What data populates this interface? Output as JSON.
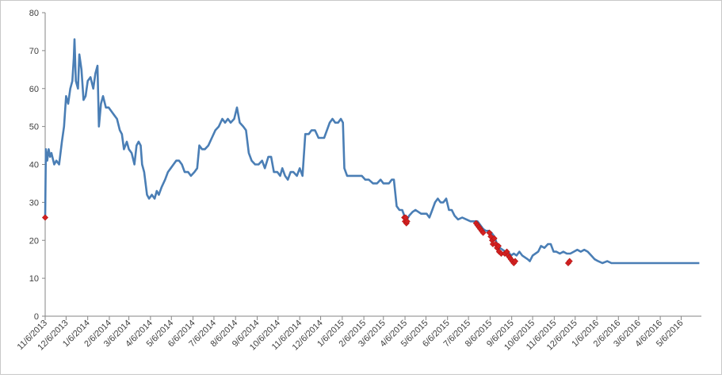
{
  "chart_data": {
    "type": "line",
    "title": "",
    "xlabel": "",
    "ylabel": "",
    "ylim": [
      0,
      80
    ],
    "yticks": [
      0,
      10,
      20,
      30,
      40,
      50,
      60,
      70,
      80
    ],
    "xlim": [
      "2013-11-06",
      "2016-06-04"
    ],
    "xticks": [
      "11/6/2013",
      "12/6/2013",
      "1/6/2014",
      "2/6/2014",
      "3/6/2014",
      "4/6/2014",
      "5/6/2014",
      "6/6/2014",
      "7/6/2014",
      "8/6/2014",
      "9/6/2014",
      "10/6/2014",
      "11/6/2014",
      "12/6/2014",
      "1/6/2015",
      "2/6/2015",
      "3/6/2015",
      "4/6/2015",
      "5/6/2015",
      "6/6/2015",
      "7/6/2015",
      "8/6/2015",
      "9/6/2015",
      "10/6/2015",
      "11/6/2015",
      "12/6/2015",
      "1/6/2016",
      "2/6/2016",
      "3/6/2016",
      "4/6/2016",
      "5/6/2016"
    ],
    "grid": false,
    "legend": "none",
    "colors": {
      "line": "#4a7eb5",
      "markers": "#d42020",
      "axis": "#868686"
    },
    "series": [
      {
        "type": "line",
        "points": [
          [
            "2013-11-06",
            26
          ],
          [
            "2013-11-07",
            44
          ],
          [
            "2013-11-09",
            41
          ],
          [
            "2013-11-11",
            44
          ],
          [
            "2013-11-13",
            42
          ],
          [
            "2013-11-15",
            43
          ],
          [
            "2013-11-19",
            40
          ],
          [
            "2013-11-22",
            41
          ],
          [
            "2013-11-26",
            40
          ],
          [
            "2013-11-30",
            46
          ],
          [
            "2013-12-03",
            50
          ],
          [
            "2013-12-06",
            58
          ],
          [
            "2013-12-09",
            56
          ],
          [
            "2013-12-12",
            60
          ],
          [
            "2013-12-15",
            62
          ],
          [
            "2013-12-17",
            68
          ],
          [
            "2013-12-18",
            73
          ],
          [
            "2013-12-20",
            62
          ],
          [
            "2013-12-23",
            60
          ],
          [
            "2013-12-25",
            69
          ],
          [
            "2013-12-28",
            65
          ],
          [
            "2013-12-31",
            57
          ],
          [
            "2014-01-03",
            58
          ],
          [
            "2014-01-06",
            62
          ],
          [
            "2014-01-10",
            63
          ],
          [
            "2014-01-14",
            60
          ],
          [
            "2014-01-17",
            64
          ],
          [
            "2014-01-20",
            66
          ],
          [
            "2014-01-22",
            50
          ],
          [
            "2014-01-25",
            56
          ],
          [
            "2014-01-28",
            58
          ],
          [
            "2014-02-01",
            55
          ],
          [
            "2014-02-05",
            55
          ],
          [
            "2014-02-09",
            54
          ],
          [
            "2014-02-13",
            53
          ],
          [
            "2014-02-17",
            52
          ],
          [
            "2014-02-21",
            49
          ],
          [
            "2014-02-24",
            48
          ],
          [
            "2014-02-27",
            44
          ],
          [
            "2014-03-03",
            46
          ],
          [
            "2014-03-06",
            44
          ],
          [
            "2014-03-10",
            43
          ],
          [
            "2014-03-14",
            40
          ],
          [
            "2014-03-17",
            45
          ],
          [
            "2014-03-20",
            46
          ],
          [
            "2014-03-23",
            45
          ],
          [
            "2014-03-25",
            40
          ],
          [
            "2014-03-28",
            38
          ],
          [
            "2014-04-01",
            32
          ],
          [
            "2014-04-04",
            31
          ],
          [
            "2014-04-08",
            32
          ],
          [
            "2014-04-12",
            31
          ],
          [
            "2014-04-15",
            33
          ],
          [
            "2014-04-18",
            32
          ],
          [
            "2014-04-22",
            34
          ],
          [
            "2014-04-27",
            36
          ],
          [
            "2014-05-01",
            38
          ],
          [
            "2014-05-05",
            39
          ],
          [
            "2014-05-09",
            40
          ],
          [
            "2014-05-13",
            41
          ],
          [
            "2014-05-17",
            41
          ],
          [
            "2014-05-21",
            40
          ],
          [
            "2014-05-25",
            38
          ],
          [
            "2014-05-30",
            38
          ],
          [
            "2014-06-03",
            37
          ],
          [
            "2014-06-08",
            38
          ],
          [
            "2014-06-12",
            39
          ],
          [
            "2014-06-15",
            45
          ],
          [
            "2014-06-19",
            44
          ],
          [
            "2014-06-23",
            44
          ],
          [
            "2014-06-28",
            45
          ],
          [
            "2014-07-03",
            47
          ],
          [
            "2014-07-08",
            49
          ],
          [
            "2014-07-13",
            50
          ],
          [
            "2014-07-18",
            52
          ],
          [
            "2014-07-22",
            51
          ],
          [
            "2014-07-26",
            52
          ],
          [
            "2014-07-30",
            51
          ],
          [
            "2014-08-04",
            52
          ],
          [
            "2014-08-08",
            55
          ],
          [
            "2014-08-12",
            51
          ],
          [
            "2014-08-17",
            50
          ],
          [
            "2014-08-21",
            49
          ],
          [
            "2014-08-25",
            43
          ],
          [
            "2014-08-29",
            41
          ],
          [
            "2014-09-03",
            40
          ],
          [
            "2014-09-08",
            40
          ],
          [
            "2014-09-13",
            41
          ],
          [
            "2014-09-17",
            39
          ],
          [
            "2014-09-22",
            42
          ],
          [
            "2014-09-26",
            42
          ],
          [
            "2014-09-30",
            38
          ],
          [
            "2014-10-05",
            38
          ],
          [
            "2014-10-09",
            37
          ],
          [
            "2014-10-12",
            39
          ],
          [
            "2014-10-16",
            37
          ],
          [
            "2014-10-20",
            36
          ],
          [
            "2014-10-24",
            38
          ],
          [
            "2014-10-28",
            38
          ],
          [
            "2014-11-02",
            37
          ],
          [
            "2014-11-06",
            39
          ],
          [
            "2014-11-10",
            37
          ],
          [
            "2014-11-14",
            48
          ],
          [
            "2014-11-19",
            48
          ],
          [
            "2014-11-23",
            49
          ],
          [
            "2014-11-28",
            49
          ],
          [
            "2014-12-03",
            47
          ],
          [
            "2014-12-07",
            47
          ],
          [
            "2014-12-11",
            47
          ],
          [
            "2014-12-15",
            49
          ],
          [
            "2014-12-19",
            51
          ],
          [
            "2014-12-23",
            52
          ],
          [
            "2014-12-27",
            51
          ],
          [
            "2014-12-31",
            51
          ],
          [
            "2015-01-04",
            52
          ],
          [
            "2015-01-07",
            51
          ],
          [
            "2015-01-09",
            39
          ],
          [
            "2015-01-13",
            37
          ],
          [
            "2015-01-18",
            37
          ],
          [
            "2015-01-23",
            37
          ],
          [
            "2015-01-28",
            37
          ],
          [
            "2015-02-03",
            37
          ],
          [
            "2015-02-08",
            36
          ],
          [
            "2015-02-13",
            36
          ],
          [
            "2015-02-19",
            35
          ],
          [
            "2015-02-25",
            35
          ],
          [
            "2015-03-02",
            36
          ],
          [
            "2015-03-06",
            35
          ],
          [
            "2015-03-10",
            35
          ],
          [
            "2015-03-14",
            35
          ],
          [
            "2015-03-18",
            36
          ],
          [
            "2015-03-21",
            36
          ],
          [
            "2015-03-25",
            29
          ],
          [
            "2015-03-29",
            28
          ],
          [
            "2015-04-02",
            28
          ],
          [
            "2015-04-06",
            26
          ],
          [
            "2015-04-09",
            25.5
          ],
          [
            "2015-04-12",
            26.5
          ],
          [
            "2015-04-17",
            27.5
          ],
          [
            "2015-04-21",
            28
          ],
          [
            "2015-04-25",
            27.5
          ],
          [
            "2015-04-29",
            27
          ],
          [
            "2015-05-03",
            27
          ],
          [
            "2015-05-07",
            27
          ],
          [
            "2015-05-11",
            26
          ],
          [
            "2015-05-15",
            28
          ],
          [
            "2015-05-19",
            30
          ],
          [
            "2015-05-23",
            31
          ],
          [
            "2015-05-27",
            30
          ],
          [
            "2015-05-31",
            30
          ],
          [
            "2015-06-04",
            31
          ],
          [
            "2015-06-08",
            28
          ],
          [
            "2015-06-12",
            28
          ],
          [
            "2015-06-16",
            26.5
          ],
          [
            "2015-06-21",
            25.5
          ],
          [
            "2015-06-27",
            26
          ],
          [
            "2015-07-03",
            25.5
          ],
          [
            "2015-07-09",
            25
          ],
          [
            "2015-07-14",
            25
          ],
          [
            "2015-07-19",
            25
          ],
          [
            "2015-07-23",
            24
          ],
          [
            "2015-07-27",
            23
          ],
          [
            "2015-07-31",
            22.5
          ],
          [
            "2015-08-04",
            22.5
          ],
          [
            "2015-08-08",
            22
          ],
          [
            "2015-08-12",
            21
          ],
          [
            "2015-08-16",
            19
          ],
          [
            "2015-08-20",
            18
          ],
          [
            "2015-08-24",
            17.5
          ],
          [
            "2015-08-28",
            17
          ],
          [
            "2015-09-01",
            17
          ],
          [
            "2015-09-05",
            16
          ],
          [
            "2015-09-09",
            16.5
          ],
          [
            "2015-09-13",
            16
          ],
          [
            "2015-09-17",
            17
          ],
          [
            "2015-09-21",
            16
          ],
          [
            "2015-09-25",
            15.5
          ],
          [
            "2015-09-29",
            15
          ],
          [
            "2015-10-02",
            14.5
          ],
          [
            "2015-10-06",
            16
          ],
          [
            "2015-10-10",
            16.5
          ],
          [
            "2015-10-14",
            17
          ],
          [
            "2015-10-18",
            18.5
          ],
          [
            "2015-10-23",
            18
          ],
          [
            "2015-10-28",
            19
          ],
          [
            "2015-11-01",
            19
          ],
          [
            "2015-11-05",
            17
          ],
          [
            "2015-11-09",
            17
          ],
          [
            "2015-11-14",
            16.5
          ],
          [
            "2015-11-19",
            17
          ],
          [
            "2015-11-24",
            16.5
          ],
          [
            "2015-11-29",
            16.5
          ],
          [
            "2015-12-04",
            17
          ],
          [
            "2015-12-09",
            17.5
          ],
          [
            "2015-12-14",
            17
          ],
          [
            "2015-12-19",
            17.5
          ],
          [
            "2015-12-24",
            17
          ],
          [
            "2015-12-29",
            16
          ],
          [
            "2016-01-03",
            15
          ],
          [
            "2016-01-08",
            14.5
          ],
          [
            "2016-01-14",
            14
          ],
          [
            "2016-01-21",
            14.5
          ],
          [
            "2016-01-27",
            14
          ],
          [
            "2016-02-02",
            14
          ],
          [
            "2016-02-08",
            14
          ],
          [
            "2016-02-15",
            14
          ],
          [
            "2016-02-22",
            14
          ],
          [
            "2016-03-01",
            14
          ],
          [
            "2016-03-08",
            14
          ],
          [
            "2016-03-15",
            14
          ],
          [
            "2016-03-22",
            14
          ],
          [
            "2016-03-29",
            14
          ],
          [
            "2016-04-05",
            14
          ],
          [
            "2016-04-12",
            14
          ],
          [
            "2016-04-19",
            14
          ],
          [
            "2016-04-26",
            14
          ],
          [
            "2016-05-03",
            14
          ],
          [
            "2016-05-10",
            14
          ],
          [
            "2016-05-17",
            14
          ],
          [
            "2016-05-24",
            14
          ],
          [
            "2016-06-01",
            14
          ]
        ]
      },
      {
        "type": "scatter",
        "marker": "diamond",
        "points": [
          [
            "2013-11-06",
            26
          ],
          [
            "2015-04-05",
            26
          ],
          [
            "2015-04-06",
            25
          ],
          [
            "2015-04-07",
            26
          ],
          [
            "2015-04-08",
            24.5
          ],
          [
            "2015-04-09",
            25
          ],
          [
            "2015-07-17",
            24.5
          ],
          [
            "2015-07-19",
            24
          ],
          [
            "2015-07-21",
            23.5
          ],
          [
            "2015-07-23",
            23
          ],
          [
            "2015-07-25",
            22.5
          ],
          [
            "2015-07-27",
            22
          ],
          [
            "2015-08-05",
            22
          ],
          [
            "2015-08-07",
            21
          ],
          [
            "2015-08-09",
            20
          ],
          [
            "2015-08-10",
            19
          ],
          [
            "2015-08-12",
            20.5
          ],
          [
            "2015-08-14",
            19
          ],
          [
            "2015-08-16",
            18
          ],
          [
            "2015-08-18",
            18.5
          ],
          [
            "2015-08-19",
            17
          ],
          [
            "2015-08-22",
            16.5
          ],
          [
            "2015-08-27",
            16.5
          ],
          [
            "2015-08-30",
            17
          ],
          [
            "2015-09-01",
            16
          ],
          [
            "2015-09-03",
            15.5
          ],
          [
            "2015-09-05",
            15
          ],
          [
            "2015-09-07",
            14.5
          ],
          [
            "2015-09-09",
            14
          ],
          [
            "2015-09-11",
            14.5
          ],
          [
            "2015-11-26",
            14
          ],
          [
            "2015-11-28",
            14.5
          ]
        ]
      }
    ]
  }
}
